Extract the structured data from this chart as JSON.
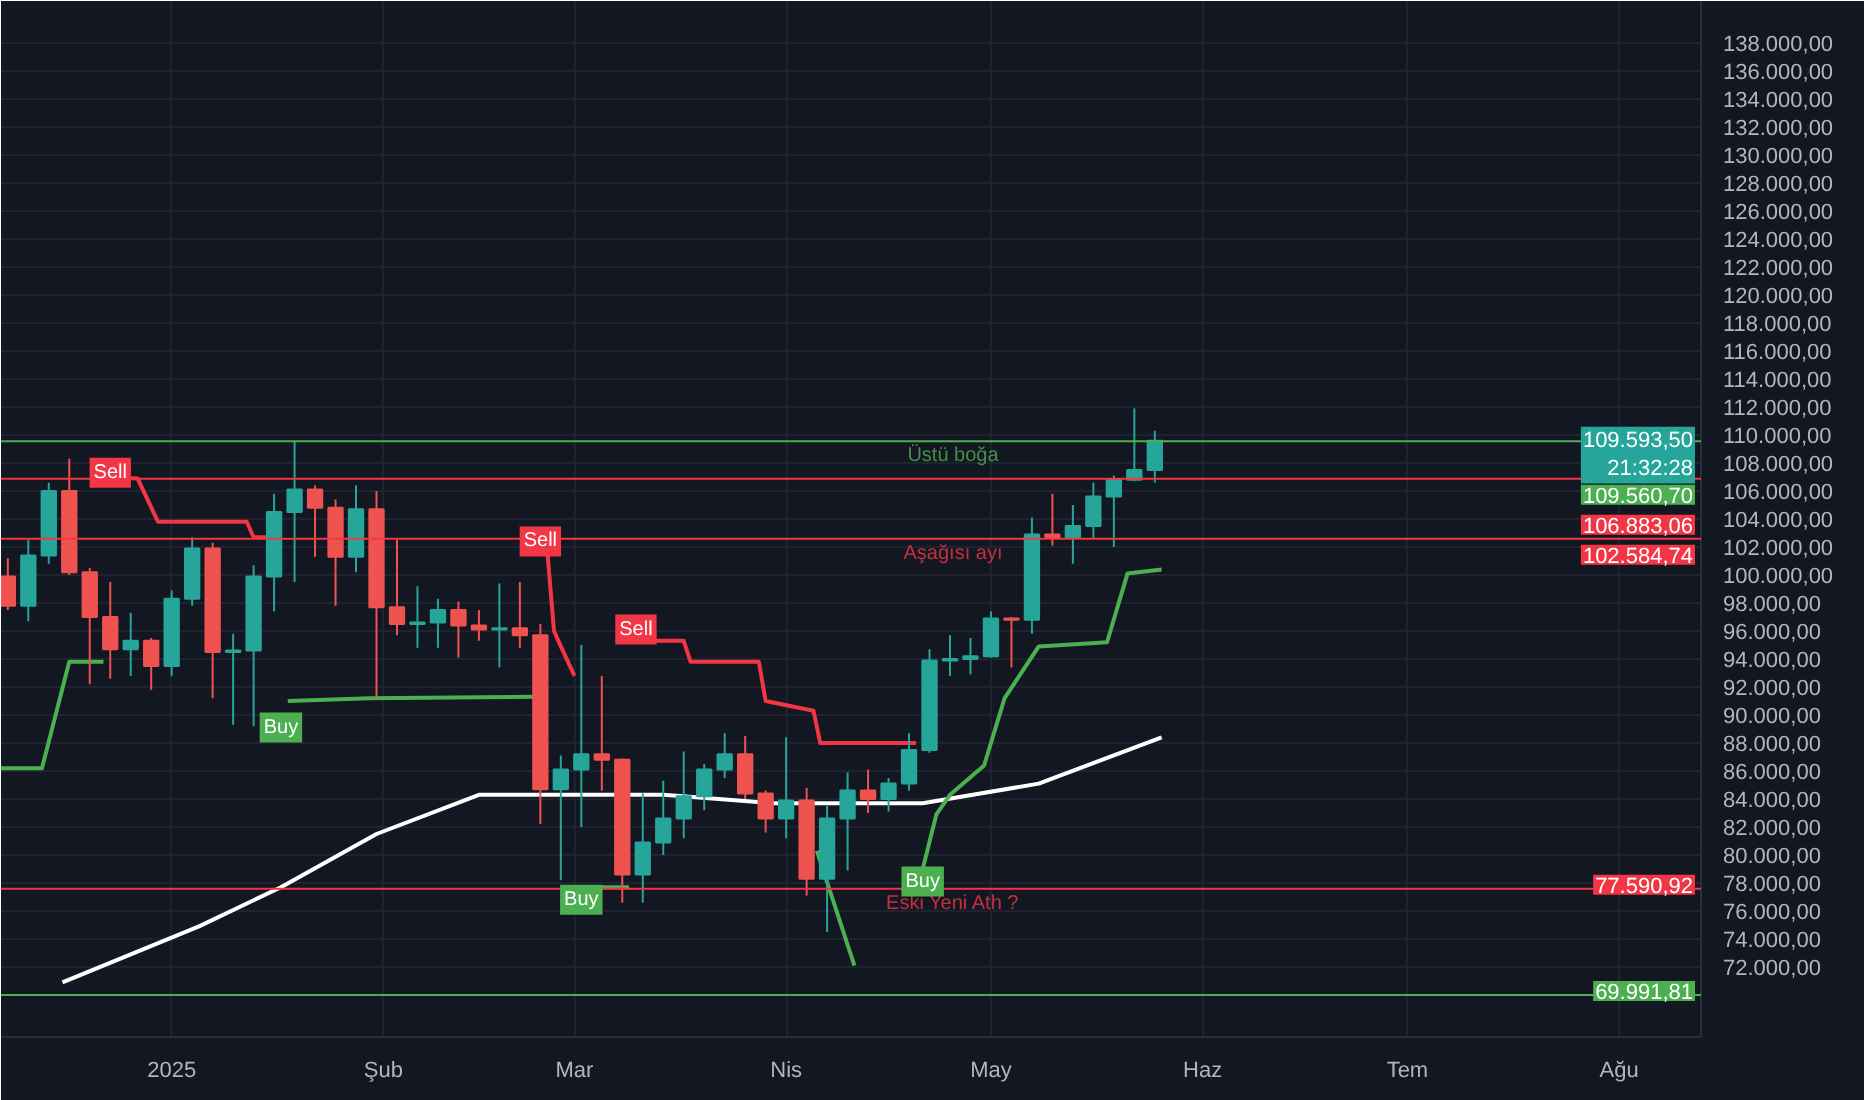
{
  "chart_data": {
    "type": "candlestick",
    "x": [
      "2024-12-08",
      "2024-12-11",
      "2024-12-14",
      "2024-12-17",
      "2024-12-20",
      "2024-12-23",
      "2024-12-26",
      "2024-12-29",
      "2025-01-01",
      "2025-01-04",
      "2025-01-07",
      "2025-01-10",
      "2025-01-13",
      "2025-01-16",
      "2025-01-19",
      "2025-01-22",
      "2025-01-25",
      "2025-01-28",
      "2025-01-31",
      "2025-02-03",
      "2025-02-06",
      "2025-02-09",
      "2025-02-12",
      "2025-02-15",
      "2025-02-18",
      "2025-02-21",
      "2025-02-24",
      "2025-02-27",
      "2025-03-02",
      "2025-03-05",
      "2025-03-08",
      "2025-03-11",
      "2025-03-14",
      "2025-03-17",
      "2025-03-20",
      "2025-03-23",
      "2025-03-26",
      "2025-03-29",
      "2025-04-01",
      "2025-04-04",
      "2025-04-07",
      "2025-04-10",
      "2025-04-13",
      "2025-04-16",
      "2025-04-19",
      "2025-04-22",
      "2025-04-25",
      "2025-04-28",
      "2025-05-01",
      "2025-05-04",
      "2025-05-07",
      "2025-05-10",
      "2025-05-13",
      "2025-05-16",
      "2025-05-19",
      "2025-05-22",
      "2025-05-25"
    ],
    "ohlc": [
      [
        99900,
        101200,
        97500,
        97800
      ],
      [
        97800,
        102500,
        96700,
        101400
      ],
      [
        101400,
        106600,
        100800,
        106000
      ],
      [
        106000,
        108300,
        100000,
        100200
      ],
      [
        100200,
        100500,
        92200,
        97000
      ],
      [
        97000,
        99500,
        92600,
        94700
      ],
      [
        94700,
        97300,
        92800,
        95300
      ],
      [
        95300,
        95500,
        91800,
        93500
      ],
      [
        93500,
        98900,
        92800,
        98300
      ],
      [
        98300,
        102700,
        97800,
        101900
      ],
      [
        101900,
        102300,
        91200,
        94500
      ],
      [
        94500,
        95800,
        89300,
        94600
      ],
      [
        94600,
        100700,
        89200,
        99900
      ],
      [
        99900,
        105800,
        97400,
        104500
      ],
      [
        104500,
        109600,
        99500,
        106100
      ],
      [
        106100,
        106400,
        101300,
        104800
      ],
      [
        104800,
        105400,
        97800,
        101300
      ],
      [
        101300,
        106400,
        100200,
        104700
      ],
      [
        104700,
        106000,
        91200,
        97700
      ],
      [
        97700,
        102500,
        95700,
        96500
      ],
      [
        96500,
        99200,
        94800,
        96600
      ],
      [
        96600,
        98300,
        94800,
        97500
      ],
      [
        97500,
        98100,
        94100,
        96400
      ],
      [
        96400,
        97500,
        95300,
        96100
      ],
      [
        96100,
        99400,
        93400,
        96200
      ],
      [
        96200,
        99500,
        94800,
        95700
      ],
      [
        95700,
        96500,
        82200,
        84700
      ],
      [
        84700,
        87100,
        78200,
        86100
      ],
      [
        86100,
        95000,
        82000,
        87200
      ],
      [
        87200,
        92800,
        84600,
        86800
      ],
      [
        86800,
        86900,
        76600,
        78600
      ],
      [
        78600,
        84400,
        76600,
        80900
      ],
      [
        80900,
        85300,
        80000,
        82600
      ],
      [
        82600,
        87400,
        81200,
        84200
      ],
      [
        84200,
        86500,
        83200,
        86100
      ],
      [
        86100,
        88700,
        85500,
        87200
      ],
      [
        87200,
        88500,
        84000,
        84400
      ],
      [
        84400,
        84600,
        81600,
        82600
      ],
      [
        82600,
        88400,
        81200,
        83900
      ],
      [
        83900,
        84800,
        77100,
        78300
      ],
      [
        78300,
        83500,
        74500,
        82600
      ],
      [
        82600,
        85900,
        78900,
        84600
      ],
      [
        84600,
        86100,
        83000,
        84000
      ],
      [
        84000,
        85500,
        83100,
        85100
      ],
      [
        85100,
        88700,
        84600,
        87500
      ],
      [
        87500,
        94700,
        87300,
        93900
      ],
      [
        93900,
        95700,
        92800,
        94000
      ],
      [
        94000,
        95500,
        92900,
        94200
      ],
      [
        94200,
        97400,
        94100,
        96900
      ],
      [
        96900,
        97000,
        93400,
        96800
      ],
      [
        96800,
        104100,
        95800,
        102900
      ],
      [
        102900,
        105800,
        102100,
        102700
      ],
      [
        102700,
        105000,
        100800,
        103500
      ],
      [
        103500,
        106600,
        102600,
        105600
      ],
      [
        105600,
        107100,
        102000,
        106800
      ],
      [
        106800,
        111900,
        106700,
        107500
      ],
      [
        107500,
        110300,
        106600,
        109593.5
      ]
    ],
    "colors": [
      "#ef5350",
      "#26a69a",
      "#26a69a",
      "#ef5350",
      "#ef5350",
      "#ef5350",
      "#26a69a",
      "#ef5350",
      "#26a69a",
      "#26a69a",
      "#ef5350",
      "#26a69a",
      "#26a69a",
      "#26a69a",
      "#26a69a",
      "#ef5350",
      "#ef5350",
      "#26a69a",
      "#ef5350",
      "#ef5350",
      "#26a69a",
      "#26a69a",
      "#ef5350",
      "#ef5350",
      "#26a69a",
      "#ef5350",
      "#ef5350",
      "#26a69a",
      "#26a69a",
      "#ef5350",
      "#ef5350",
      "#26a69a",
      "#26a69a",
      "#26a69a",
      "#26a69a",
      "#26a69a",
      "#ef5350",
      "#ef5350",
      "#26a69a",
      "#ef5350",
      "#26a69a",
      "#26a69a",
      "#ef5350",
      "#26a69a",
      "#26a69a",
      "#26a69a",
      "#26a69a",
      "#26a69a",
      "#26a69a",
      "#ef5350",
      "#26a69a",
      "#ef5350",
      "#26a69a",
      "#26a69a",
      "#26a69a",
      "#26a69a",
      "#26a69a"
    ],
    "series": [
      {
        "type": "line",
        "color": "#ffffff",
        "x": [
          "2024-12-16",
          "2025-01-05",
          "2025-01-17",
          "2025-01-31",
          "2025-02-15",
          "2025-02-25",
          "2025-03-14",
          "2025-03-30",
          "2025-04-21",
          "2025-05-08",
          "2025-05-26"
        ],
        "values": [
          70900,
          74900,
          77700,
          81500,
          84300,
          84300,
          84300,
          83700,
          83700,
          85100,
          88400
        ]
      },
      {
        "type": "line",
        "color": "#4caf50",
        "x": [
          "2024-12-07",
          "2024-12-13",
          "2024-12-17",
          "2024-12-22",
          "2024-12-23",
          "2025-01-18",
          "2025-01-30",
          "2025-02-23",
          "2025-02-24",
          "2025-03-02",
          "2025-03-09",
          "2025-03-10",
          "2025-04-21",
          "2025-04-23",
          "2025-04-25",
          "2025-04-30",
          "2025-05-03",
          "2025-05-08",
          "2025-05-18",
          "2025-05-21",
          "2025-05-26"
        ],
        "values": [
          86200,
          86200,
          93800,
          93800,
          null,
          91000,
          91200,
          91300,
          null,
          77700,
          77700,
          null,
          79000,
          82900,
          84300,
          86400,
          91200,
          94900,
          95200,
          100100,
          100400
        ]
      },
      {
        "type": "line",
        "color": "#f23645",
        "x": [
          "2024-12-23",
          "2024-12-27",
          "2024-12-30",
          "2025-01-12",
          "2025-01-13",
          "2025-01-16",
          "2025-01-17",
          "2025-02-25",
          "2025-02-26",
          "2025-02-27",
          "2025-03-01",
          "2025-03-02",
          "2025-03-10",
          "2025-03-17",
          "2025-03-18",
          "2025-03-28",
          "2025-03-29",
          "2025-04-05",
          "2025-04-06",
          "2025-04-20"
        ],
        "values": [
          107000,
          106900,
          103800,
          103800,
          102700,
          102700,
          null,
          101800,
          96000,
          94900,
          92800,
          null,
          95300,
          95300,
          93800,
          93800,
          91000,
          90300,
          88000,
          88000
        ]
      },
      {
        "type": "line",
        "color": "#4caf50",
        "x": [
          "2025-04-05T12:00",
          "2025-04-11"
        ],
        "values": [
          80300,
          72100
        ]
      },
      {
        "type": "scatter",
        "color": "#f23645",
        "x": [
          "2024-12-23",
          "2025-02-24",
          "2025-03-10"
        ],
        "values": [
          107300,
          102400,
          96100
        ],
        "value_labels": [
          "Sell",
          "Sell",
          "Sell"
        ]
      },
      {
        "type": "scatter",
        "color": "#4caf50",
        "x": [
          "2025-01-17",
          "2025-03-02",
          "2025-04-21"
        ],
        "values": [
          89100,
          76800,
          78100
        ],
        "value_labels": [
          "Buy",
          "Buy",
          "Buy"
        ]
      }
    ],
    "ref_lines": [
      {
        "axis": "y",
        "value": 109560.7,
        "label": "Üstü boğa",
        "color": "#4caf50"
      },
      {
        "axis": "y",
        "value": 106883.06,
        "label": null,
        "color": "#f23645"
      },
      {
        "axis": "y",
        "value": 102584.74,
        "label": "Aşağısı ayı",
        "color": "#f23645"
      },
      {
        "axis": "y",
        "value": 77590.92,
        "label": "Eski Yeni Ath ?",
        "color": "#f23645"
      },
      {
        "axis": "y",
        "value": 69991.81,
        "label": null,
        "color": "#4caf50"
      }
    ],
    "annotations": [
      {
        "text": "109.593,50",
        "x": "2025-08-13",
        "y": 109593.5
      },
      "21:32:28",
      {
        "text": "109.560,70",
        "x": "2025-08-13",
        "y": 109560.7
      },
      {
        "text": "106.883,06",
        "x": "2025-08-13",
        "y": 106883.06
      },
      {
        "text": "102.584,74",
        "x": "2025-08-13",
        "y": 102584.74
      },
      {
        "text": "77.590,92",
        "x": "2025-08-13",
        "y": 77590.92
      },
      {
        "text": "69.991,81",
        "x": "2025-08-13",
        "y": 69991.81
      }
    ],
    "xlim": [
      "2024-12-07",
      "2025-08-13"
    ],
    "xticks": [
      {
        "value": "2025-01-01",
        "label": "2025"
      },
      {
        "value": "2025-02-01",
        "label": "Şub"
      },
      {
        "value": "2025-03-01",
        "label": "Mar"
      },
      {
        "value": "2025-04-01",
        "label": "Nis"
      },
      {
        "value": "2025-05-01",
        "label": "May"
      },
      {
        "value": "2025-06-01",
        "label": "Haz"
      },
      {
        "value": "2025-07-01",
        "label": "Tem"
      },
      {
        "value": "2025-08-01",
        "label": "Ağu"
      }
    ],
    "ylim": [
      67000,
      141000
    ],
    "yticks": [
      {
        "value": 72000,
        "label": "72.000,00"
      },
      {
        "value": 74000,
        "label": "74.000,00"
      },
      {
        "value": 76000,
        "label": "76.000,00"
      },
      {
        "value": 78000,
        "label": "78.000,00"
      },
      {
        "value": 80000,
        "label": "80.000,00"
      },
      {
        "value": 82000,
        "label": "82.000,00"
      },
      {
        "value": 84000,
        "label": "84.000,00"
      },
      {
        "value": 86000,
        "label": "86.000,00"
      },
      {
        "value": 88000,
        "label": "88.000,00"
      },
      {
        "value": 90000,
        "label": "90.000,00"
      },
      {
        "value": 92000,
        "label": "92.000,00"
      },
      {
        "value": 94000,
        "label": "94.000,00"
      },
      {
        "value": 96000,
        "label": "96.000,00"
      },
      {
        "value": 98000,
        "label": "98.000,00"
      },
      {
        "value": 100000,
        "label": "100.000,00"
      },
      {
        "value": 102000,
        "label": "102.000,00"
      },
      {
        "value": 104000,
        "label": "104.000,00"
      },
      {
        "value": 106000,
        "label": "106.000,00"
      },
      {
        "value": 108000,
        "label": "108.000,00"
      },
      {
        "value": 110000,
        "label": "110.000,00"
      },
      {
        "value": 112000,
        "label": "112.000,00"
      },
      {
        "value": 114000,
        "label": "114.000,00"
      },
      {
        "value": 116000,
        "label": "116.000,00"
      },
      {
        "value": 118000,
        "label": "118.000,00"
      },
      {
        "value": 120000,
        "label": "120.000,00"
      },
      {
        "value": 122000,
        "label": "122.000,00"
      },
      {
        "value": 124000,
        "label": "124.000,00"
      },
      {
        "value": 126000,
        "label": "126.000,00"
      },
      {
        "value": 128000,
        "label": "128.000,00"
      },
      {
        "value": 130000,
        "label": "130.000,00"
      },
      {
        "value": 132000,
        "label": "132.000,00"
      },
      {
        "value": 134000,
        "label": "134.000,00"
      },
      {
        "value": 136000,
        "label": "136.000,00"
      },
      {
        "value": 138000,
        "label": "138.000,00"
      }
    ],
    "grid": true
  }
}
